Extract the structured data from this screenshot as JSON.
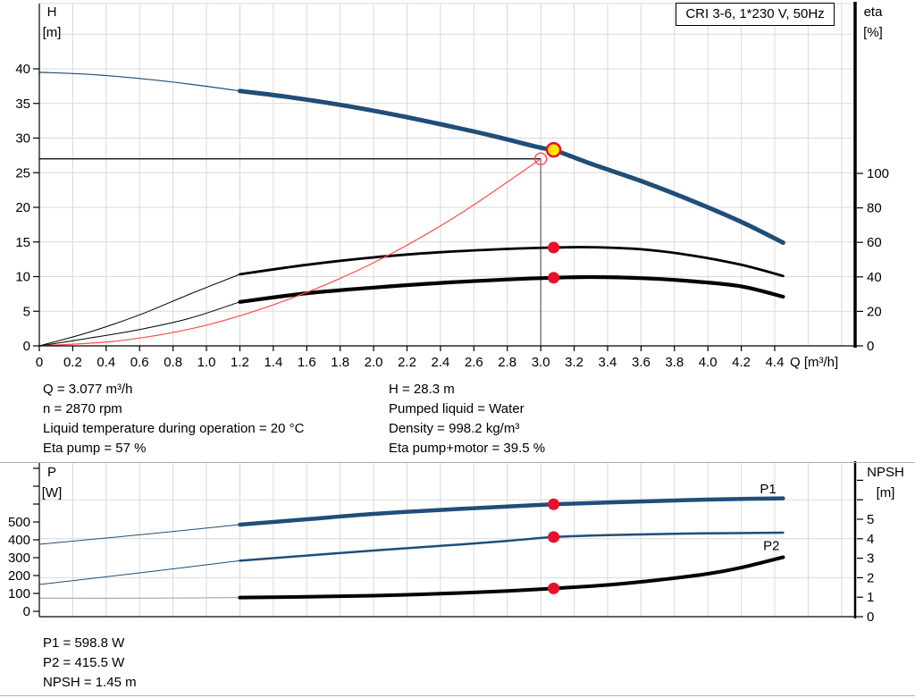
{
  "colors": {
    "blue": "#1f4e79",
    "black": "#000000",
    "red": "#ff4d4d",
    "gray": "#9a9a9a",
    "grid": "#d9d9d9",
    "marker_red": "#e8112d",
    "marker_yellow": "#ffe600",
    "separator": "#b0b0b0"
  },
  "info_block": {
    "left": [
      "Q = 3.077 m³/h",
      "n = 2870 rpm",
      "Liquid temperature during operation = 20 °C",
      "Eta pump = 57 %"
    ],
    "right": [
      "H = 28.3 m",
      "Pumped liquid = Water",
      "Density = 998.2 kg/m³",
      "Eta pump+motor = 39.5 %"
    ],
    "bottom": [
      "P1 = 598.8 W",
      "P2 = 415.5 W",
      "NPSH = 1.45 m"
    ]
  },
  "chart_data": [
    {
      "id": "hq-eta-chart",
      "type": "line",
      "title": "CRI 3-6, 1*230 V, 50Hz",
      "x_axis": {
        "label": "Q [m³/h]",
        "min": 0,
        "max": 4.9,
        "ticks": [
          {
            "v": 0,
            "l": "0"
          },
          {
            "v": 0.2,
            "l": "0.2"
          },
          {
            "v": 0.4,
            "l": "0.4"
          },
          {
            "v": 0.6,
            "l": "0.6"
          },
          {
            "v": 0.8,
            "l": "0.8"
          },
          {
            "v": 1.0,
            "l": "1.0"
          },
          {
            "v": 1.2,
            "l": "1.2"
          },
          {
            "v": 1.4,
            "l": "1.4"
          },
          {
            "v": 1.6,
            "l": "1.6"
          },
          {
            "v": 1.8,
            "l": "1.8"
          },
          {
            "v": 2.0,
            "l": "2.0"
          },
          {
            "v": 2.2,
            "l": "2.2"
          },
          {
            "v": 2.4,
            "l": "2.4"
          },
          {
            "v": 2.6,
            "l": "2.6"
          },
          {
            "v": 2.8,
            "l": "2.8"
          },
          {
            "v": 3.0,
            "l": "3.0"
          },
          {
            "v": 3.2,
            "l": "3.2"
          },
          {
            "v": 3.4,
            "l": "3.4"
          },
          {
            "v": 3.6,
            "l": "3.6"
          },
          {
            "v": 3.8,
            "l": "3.8"
          },
          {
            "v": 4.0,
            "l": "4.0"
          },
          {
            "v": 4.2,
            "l": "4.2"
          },
          {
            "v": 4.4,
            "l": "4.4"
          }
        ]
      },
      "y_left": {
        "label": "H\n[m]",
        "min": 0,
        "max": 49,
        "ticks": [
          {
            "v": 0,
            "l": "0"
          },
          {
            "v": 5,
            "l": "5"
          },
          {
            "v": 10,
            "l": "10"
          },
          {
            "v": 15,
            "l": "15"
          },
          {
            "v": 20,
            "l": "20"
          },
          {
            "v": 25,
            "l": "25"
          },
          {
            "v": 30,
            "l": "30"
          },
          {
            "v": 35,
            "l": "35"
          },
          {
            "v": 40,
            "l": "40"
          }
        ]
      },
      "y_right": {
        "label": "eta\n[%]",
        "min": 0,
        "max": 198,
        "ticks": [
          {
            "v": 0,
            "l": "0"
          },
          {
            "v": 20,
            "l": "20"
          },
          {
            "v": 40,
            "l": "40"
          },
          {
            "v": 60,
            "l": "60"
          },
          {
            "v": 80,
            "l": "80"
          },
          {
            "v": 100,
            "l": "100"
          }
        ]
      },
      "series": [
        {
          "name": "head-curve-low-flow",
          "axis": "left",
          "color": "blue",
          "w": 1.2,
          "pts": [
            [
              0,
              39.5
            ],
            [
              0.3,
              39.2
            ],
            [
              0.6,
              38.6
            ],
            [
              0.9,
              37.8
            ],
            [
              1.2,
              36.8
            ]
          ]
        },
        {
          "name": "head-curve",
          "axis": "left",
          "color": "blue",
          "w": 5,
          "pts": [
            [
              1.2,
              36.8
            ],
            [
              1.5,
              35.9
            ],
            [
              1.8,
              34.8
            ],
            [
              2.1,
              33.5
            ],
            [
              2.4,
              32.0
            ],
            [
              2.7,
              30.4
            ],
            [
              3.0,
              28.6
            ],
            [
              3.077,
              28.3
            ],
            [
              3.3,
              26.3
            ],
            [
              3.6,
              23.8
            ],
            [
              3.9,
              21.0
            ],
            [
              4.2,
              17.9
            ],
            [
              4.45,
              14.9
            ]
          ]
        },
        {
          "name": "eta-pump-curve-low-flow",
          "axis": "right",
          "color": "black",
          "w": 1,
          "pts": [
            [
              0,
              0
            ],
            [
              0.3,
              8
            ],
            [
              0.6,
              18
            ],
            [
              0.9,
              30
            ],
            [
              1.2,
              41.5
            ]
          ]
        },
        {
          "name": "eta-pump-curve",
          "axis": "right",
          "color": "black",
          "w": 2.8,
          "pts": [
            [
              1.2,
              41.5
            ],
            [
              1.6,
              47.0
            ],
            [
              2.0,
              51.3
            ],
            [
              2.4,
              54.3
            ],
            [
              2.8,
              56.2
            ],
            [
              3.077,
              57.0
            ],
            [
              3.3,
              57.2
            ],
            [
              3.6,
              56.0
            ],
            [
              3.9,
              52.5
            ],
            [
              4.2,
              47.0
            ],
            [
              4.45,
              40.5
            ]
          ]
        },
        {
          "name": "eta-pump-motor-curve-low-flow",
          "axis": "right",
          "color": "black",
          "w": 1,
          "pts": [
            [
              0,
              0
            ],
            [
              0.3,
              4.5
            ],
            [
              0.6,
              9.5
            ],
            [
              0.9,
              16.0
            ],
            [
              1.2,
              25.5
            ]
          ]
        },
        {
          "name": "eta-pump-motor-curve",
          "axis": "right",
          "color": "black",
          "w": 4.2,
          "pts": [
            [
              1.2,
              25.5
            ],
            [
              1.6,
              30.5
            ],
            [
              2.0,
              33.8
            ],
            [
              2.4,
              36.5
            ],
            [
              2.8,
              38.5
            ],
            [
              3.077,
              39.5
            ],
            [
              3.3,
              39.9
            ],
            [
              3.6,
              39.3
            ],
            [
              3.9,
              37.5
            ],
            [
              4.2,
              34.5
            ],
            [
              4.45,
              28.5
            ]
          ]
        },
        {
          "name": "system-curve",
          "axis": "left",
          "color": "red",
          "w": 1.2,
          "pts": [
            [
              0,
              0
            ],
            [
              0.5,
              0.8
            ],
            [
              1.0,
              3.0
            ],
            [
              1.5,
              6.8
            ],
            [
              2.0,
              12.0
            ],
            [
              2.5,
              18.8
            ],
            [
              3.0,
              27.0
            ]
          ]
        }
      ],
      "duty": {
        "h_line": {
          "h": 27,
          "q_to": 3.0
        },
        "v_line": {
          "q": 3.0,
          "h_from": 27
        }
      },
      "markers": [
        {
          "name": "duty-point-marker",
          "q": 3.077,
          "axis": "left",
          "v": 28.3,
          "style": "yellow"
        },
        {
          "name": "requested-duty-point-marker",
          "q": 3.0,
          "axis": "left",
          "v": 27,
          "style": "open"
        },
        {
          "name": "eta-pump-point-marker",
          "q": 3.077,
          "axis": "right",
          "v": 57,
          "style": "red"
        },
        {
          "name": "eta-pump-motor-point-marker",
          "q": 3.077,
          "axis": "right",
          "v": 39.5,
          "style": "red"
        }
      ]
    },
    {
      "id": "power-npsh-chart",
      "type": "line",
      "title": "",
      "x_axis": {
        "label": "",
        "min": 0,
        "max": 4.9,
        "ticks": []
      },
      "y_left": {
        "label": "P\n[W]",
        "min": 0,
        "max": 830,
        "ticks": [
          {
            "v": 0,
            "l": "0"
          },
          {
            "v": 100,
            "l": "100"
          },
          {
            "v": 200,
            "l": "200"
          },
          {
            "v": 300,
            "l": "300"
          },
          {
            "v": 400,
            "l": "400"
          },
          {
            "v": 500,
            "l": "500"
          },
          {
            "v": 600,
            "l": ""
          },
          {
            "v": 700,
            "l": ""
          },
          {
            "v": 800,
            "l": ""
          }
        ]
      },
      "y_right": {
        "label": "NPSH\n[m]",
        "min": 0,
        "max": 7.9,
        "ticks": [
          {
            "v": 0,
            "l": "0"
          },
          {
            "v": 1,
            "l": "1"
          },
          {
            "v": 2,
            "l": "2"
          },
          {
            "v": 3,
            "l": "3"
          },
          {
            "v": 4,
            "l": "4"
          },
          {
            "v": 5,
            "l": "5"
          },
          {
            "v": 6,
            "l": ""
          },
          {
            "v": 7,
            "l": ""
          }
        ]
      },
      "series": [
        {
          "name": "p1-curve-low-flow",
          "axis": "left",
          "color": "blue",
          "w": 1,
          "pts": [
            [
              0,
              375
            ],
            [
              0.6,
              428
            ],
            [
              1.2,
              485
            ]
          ]
        },
        {
          "name": "p1-curve",
          "axis": "left",
          "color": "blue",
          "w": 4.5,
          "pts": [
            [
              1.2,
              485
            ],
            [
              1.6,
              515
            ],
            [
              2.0,
              545
            ],
            [
              2.4,
              567
            ],
            [
              2.8,
              586
            ],
            [
              3.077,
              598.8
            ],
            [
              3.4,
              609
            ],
            [
              3.8,
              620
            ],
            [
              4.1,
              627
            ],
            [
              4.45,
              632
            ]
          ]
        },
        {
          "name": "p2-curve-low-flow",
          "axis": "left",
          "color": "blue",
          "w": 1,
          "pts": [
            [
              0,
              150
            ],
            [
              0.6,
              215
            ],
            [
              1.2,
              283
            ]
          ]
        },
        {
          "name": "p2-curve",
          "axis": "left",
          "color": "blue",
          "w": 2.5,
          "pts": [
            [
              1.2,
              283
            ],
            [
              1.6,
              312
            ],
            [
              2.0,
              340
            ],
            [
              2.4,
              366
            ],
            [
              2.8,
              394
            ],
            [
              3.077,
              415.5
            ],
            [
              3.4,
              426
            ],
            [
              3.8,
              434
            ],
            [
              4.1,
              437
            ],
            [
              4.45,
              440
            ]
          ]
        },
        {
          "name": "npsh-curve-low-flow",
          "axis": "right",
          "color": "gray",
          "w": 1,
          "pts": [
            [
              0,
              0.95
            ],
            [
              0.6,
              0.95
            ],
            [
              1.2,
              0.98
            ]
          ]
        },
        {
          "name": "npsh-curve",
          "axis": "right",
          "color": "black",
          "w": 4,
          "pts": [
            [
              1.2,
              0.98
            ],
            [
              1.6,
              1.02
            ],
            [
              2.0,
              1.08
            ],
            [
              2.4,
              1.18
            ],
            [
              2.8,
              1.32
            ],
            [
              3.077,
              1.45
            ],
            [
              3.4,
              1.63
            ],
            [
              3.7,
              1.88
            ],
            [
              4.0,
              2.2
            ],
            [
              4.2,
              2.52
            ],
            [
              4.45,
              3.05
            ]
          ]
        }
      ],
      "markers": [
        {
          "name": "p1-point-marker",
          "q": 3.077,
          "axis": "left",
          "v": 598.8,
          "style": "red"
        },
        {
          "name": "p2-point-marker",
          "q": 3.077,
          "axis": "left",
          "v": 415.5,
          "style": "red"
        },
        {
          "name": "npsh-point-marker",
          "q": 3.077,
          "axis": "right",
          "v": 1.45,
          "style": "red"
        }
      ],
      "curve_labels": [
        {
          "text": "P1",
          "q": 4.36,
          "v": 685
        },
        {
          "text": "P2",
          "q": 4.38,
          "v": 368
        }
      ]
    }
  ]
}
